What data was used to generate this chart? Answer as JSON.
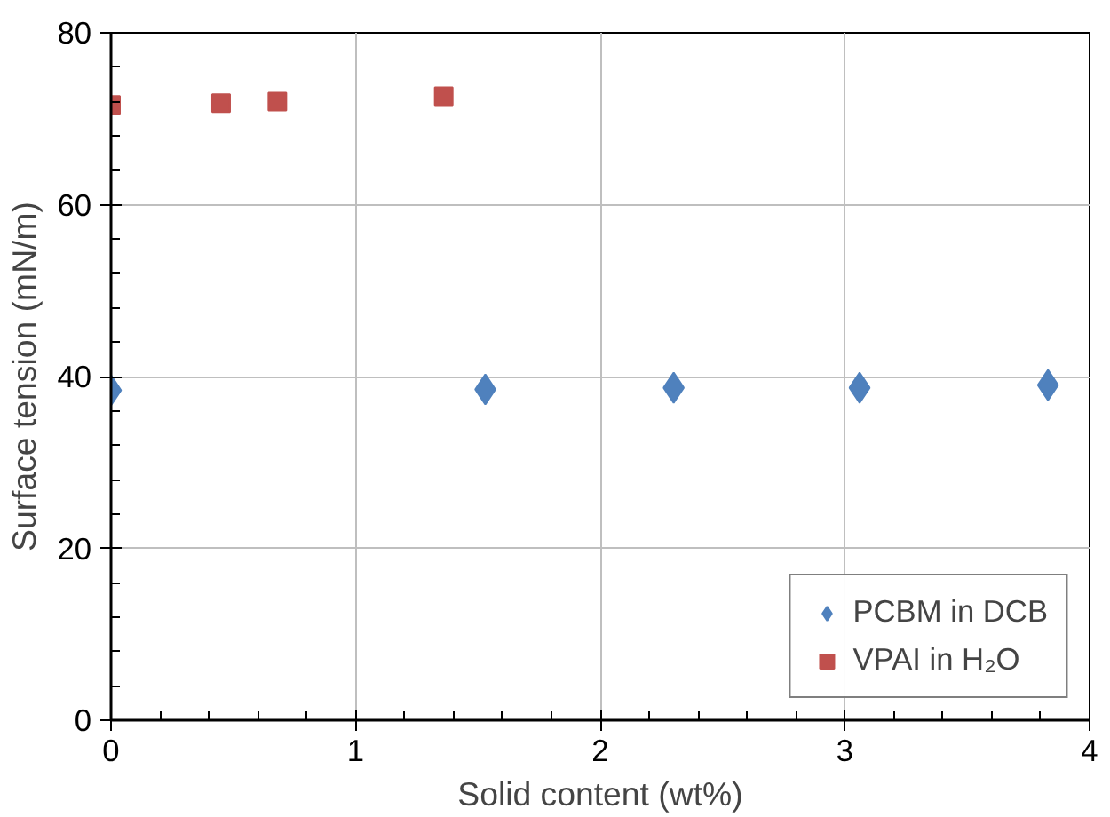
{
  "chart_data": {
    "type": "scatter",
    "xlabel": "Solid content (wt%)",
    "ylabel": "Surface tension (mN/m)",
    "series": [
      {
        "name": "PCBM in DCB",
        "color": "#4f81bd",
        "marker": "diamond",
        "x": [
          0,
          1.53,
          2.3,
          3.06,
          3.83
        ],
        "values": [
          38.4,
          38.5,
          38.7,
          38.7,
          39.0
        ]
      },
      {
        "name": "VPAI in H₂O",
        "color": "#c0504d",
        "marker": "square",
        "x": [
          0,
          0.45,
          0.68,
          1.36
        ],
        "values": [
          71.6,
          71.8,
          72.0,
          72.6
        ]
      }
    ],
    "xlim": [
      0,
      4
    ],
    "ylim": [
      0,
      80
    ],
    "xticks": [
      0,
      {
        "value": 0.2,
        "label": null
      },
      {
        "value": 0.4,
        "label": null
      },
      {
        "value": 0.6,
        "label": null
      },
      {
        "value": 0.8,
        "label": null
      },
      1,
      {
        "value": 1.2,
        "label": null
      },
      {
        "value": 1.4,
        "label": null
      },
      {
        "value": 1.6,
        "label": null
      },
      {
        "value": 1.8,
        "label": null
      },
      2,
      {
        "value": 2.2,
        "label": null
      },
      {
        "value": 2.4,
        "label": null
      },
      {
        "value": 2.6,
        "label": null
      },
      {
        "value": 2.8,
        "label": null
      },
      3,
      {
        "value": 3.2,
        "label": null
      },
      {
        "value": 3.4,
        "label": null
      },
      {
        "value": 3.6,
        "label": null
      },
      {
        "value": 3.8,
        "label": null
      },
      4
    ],
    "yticks": [
      0,
      {
        "value": 4,
        "label": null
      },
      {
        "value": 8,
        "label": null
      },
      {
        "value": 12,
        "label": null
      },
      {
        "value": 16,
        "label": null
      },
      20,
      {
        "value": 24,
        "label": null
      },
      {
        "value": 28,
        "label": null
      },
      {
        "value": 32,
        "label": null
      },
      {
        "value": 36,
        "label": null
      },
      40,
      {
        "value": 44,
        "label": null
      },
      {
        "value": 48,
        "label": null
      },
      {
        "value": 52,
        "label": null
      },
      {
        "value": 56,
        "label": null
      },
      60,
      {
        "value": 64,
        "label": null
      },
      {
        "value": 68,
        "label": null
      },
      {
        "value": 72,
        "label": null
      },
      {
        "value": 76,
        "label": null
      },
      80
    ],
    "grid": true,
    "legend": "bottom right"
  }
}
